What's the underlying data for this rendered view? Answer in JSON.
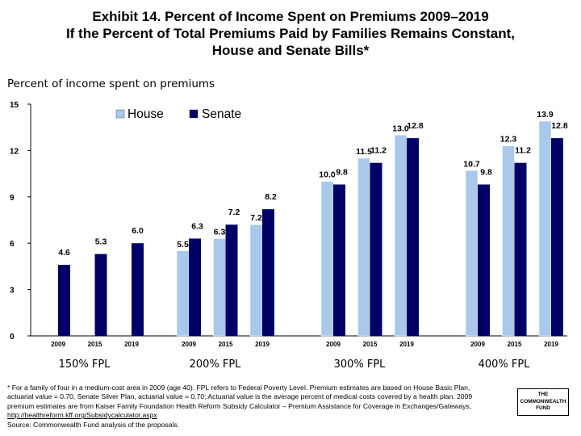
{
  "title": {
    "line1": "Exhibit 14. Percent of Income Spent on Premiums 2009–2019",
    "line2": "If the Percent of Total Premiums Paid by Families Remains Constant,",
    "line3": "House and Senate Bills*"
  },
  "colors": {
    "house": "#a9c8ec",
    "senate": "#000066"
  },
  "chart_data": {
    "type": "bar",
    "ylabel": "Percent of income spent on premiums",
    "ylim": [
      0,
      15
    ],
    "yticks": [
      "0",
      "3",
      "6",
      "9",
      "12",
      "15"
    ],
    "grid": false,
    "legend_position": "top",
    "groups": [
      {
        "label": "150% FPL",
        "years": [
          "2009",
          "2015",
          "2019"
        ],
        "house": [
          null,
          null,
          null
        ],
        "senate": [
          4.6,
          5.3,
          6.0
        ],
        "house_labels": [
          "",
          "",
          ""
        ],
        "senate_labels": [
          "4.6",
          "5.3",
          "6.0"
        ]
      },
      {
        "label": "200% FPL",
        "years": [
          "2009",
          "2015",
          "2019"
        ],
        "house": [
          5.5,
          6.3,
          7.2
        ],
        "senate": [
          6.3,
          7.2,
          8.2
        ],
        "house_labels": [
          "5.5",
          "6.3",
          "7.2"
        ],
        "senate_labels": [
          "6.3",
          "7.2",
          "8.2"
        ]
      },
      {
        "label": "300% FPL",
        "years": [
          "2009",
          "2015",
          "2019"
        ],
        "house": [
          10.0,
          11.5,
          13.0
        ],
        "senate": [
          9.8,
          11.2,
          12.8
        ],
        "house_labels": [
          "10.0",
          "11.5",
          "13.0"
        ],
        "senate_labels": [
          "9.8",
          "11.2",
          "12.8"
        ]
      },
      {
        "label": "400% FPL",
        "years": [
          "2009",
          "2015",
          "2019"
        ],
        "house": [
          10.7,
          12.3,
          13.9
        ],
        "senate": [
          9.8,
          11.2,
          12.8
        ],
        "house_labels": [
          "10.7",
          "12.3",
          "13.9"
        ],
        "senate_labels": [
          "9.8",
          "11.2",
          "12.8"
        ]
      }
    ],
    "series": [
      {
        "name": "House",
        "color": "#a9c8ec"
      },
      {
        "name": "Senate",
        "color": "#000066"
      }
    ]
  },
  "footnote": {
    "text": "* For a family of four in a medium-cost area in 2009 (age 40). FPL refers to Federal Poverty Level. Premium estimates are based on House Basic Plan, actuarial value = 0.70, Senate Silver Plan, actuarial value = 0.70; Actuarial value is the average percent of medical costs covered by a health plan. 2009 premium estimates are from Kaiser Family Foundation Health Reform Subsidy Calculator – Premium Assistance for Coverage in Exchanges/Gateways, ",
    "link": "http://healthreform.kff.org/Subsidycalculator.aspx",
    "source": "Source: Commonwealth Fund analysis of the proposals."
  },
  "logo": {
    "line1": "THE",
    "line2": "COMMONWEALTH",
    "line3": "FUND"
  }
}
